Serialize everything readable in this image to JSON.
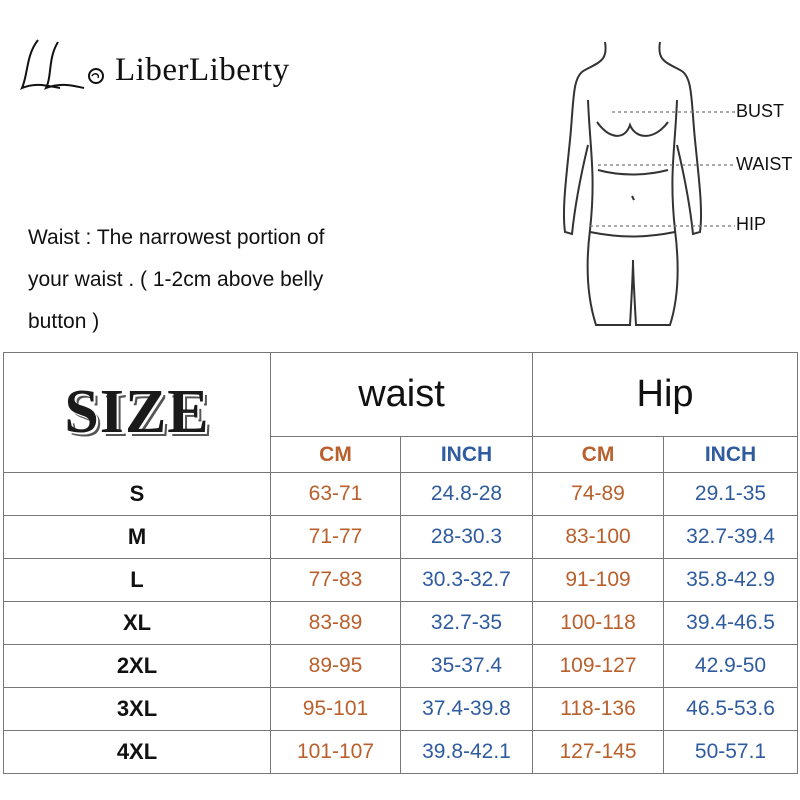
{
  "brand": "LiberLiberty",
  "note_lines": [
    "Waist : The narrowest portion of",
    "your waist . ( 1-2cm above belly",
    "button )"
  ],
  "figure_labels": [
    "BUST",
    "WAIST",
    "HIP"
  ],
  "table": {
    "corner": "SIZE",
    "groups": [
      "waist",
      "Hip"
    ],
    "units": [
      "CM",
      "INCH",
      "CM",
      "INCH"
    ],
    "rows": [
      [
        "S",
        "63-71",
        "24.8-28",
        "74-89",
        "29.1-35"
      ],
      [
        "M",
        "71-77",
        "28-30.3",
        "83-100",
        "32.7-39.4"
      ],
      [
        "L",
        "77-83",
        "30.3-32.7",
        "91-109",
        "35.8-42.9"
      ],
      [
        "XL",
        "83-89",
        "32.7-35",
        "100-118",
        "39.4-46.5"
      ],
      [
        "2XL",
        "89-95",
        "35-37.4",
        "109-127",
        "42.9-50"
      ],
      [
        "3XL",
        "95-101",
        "37.4-39.8",
        "118-136",
        "46.5-53.6"
      ],
      [
        "4XL",
        "101-107",
        "39.8-42.1",
        "127-145",
        "50-57.1"
      ]
    ]
  }
}
